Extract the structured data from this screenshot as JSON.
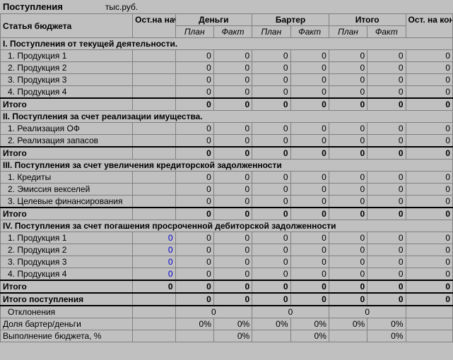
{
  "title": "Поступления",
  "unit": "тыс.руб.",
  "headers": {
    "name": "Статья бюджета",
    "start": "Ост.на начало",
    "money": "Деньги",
    "barter": "Бартер",
    "total": "Итого",
    "end": "Ост. на конец",
    "plan": "План",
    "fact": "Факт"
  },
  "sections": {
    "s1": {
      "title": "I. Поступления от текущей деятельности.",
      "rows": [
        {
          "name": "1. Продукция 1",
          "m_plan": "0",
          "m_fact": "0",
          "b_plan": "0",
          "b_fact": "0",
          "t_plan": "0",
          "t_fact": "0",
          "end": "0"
        },
        {
          "name": "2. Продукция 2",
          "m_plan": "0",
          "m_fact": "0",
          "b_plan": "0",
          "b_fact": "0",
          "t_plan": "0",
          "t_fact": "0",
          "end": "0"
        },
        {
          "name": "3. Продукция 3",
          "m_plan": "0",
          "m_fact": "0",
          "b_plan": "0",
          "b_fact": "0",
          "t_plan": "0",
          "t_fact": "0",
          "end": "0"
        },
        {
          "name": "4. Продукция 4",
          "m_plan": "0",
          "m_fact": "0",
          "b_plan": "0",
          "b_fact": "0",
          "t_plan": "0",
          "t_fact": "0",
          "end": "0"
        }
      ],
      "total": {
        "name": "Итого",
        "m_plan": "0",
        "m_fact": "0",
        "b_plan": "0",
        "b_fact": "0",
        "t_plan": "0",
        "t_fact": "0",
        "end": "0"
      }
    },
    "s2": {
      "title": "II. Поступления за счет реализации имущества.",
      "rows": [
        {
          "name": "1. Реализация ОФ",
          "m_plan": "0",
          "m_fact": "0",
          "b_plan": "0",
          "b_fact": "0",
          "t_plan": "0",
          "t_fact": "0",
          "end": "0"
        },
        {
          "name": "2. Реализация запасов",
          "m_plan": "0",
          "m_fact": "0",
          "b_plan": "0",
          "b_fact": "0",
          "t_plan": "0",
          "t_fact": "0",
          "end": "0"
        }
      ],
      "total": {
        "name": "Итого",
        "m_plan": "0",
        "m_fact": "0",
        "b_plan": "0",
        "b_fact": "0",
        "t_plan": "0",
        "t_fact": "0",
        "end": "0"
      }
    },
    "s3": {
      "title": "III. Поступления за счет увеличения кредиторской задолженности",
      "rows": [
        {
          "name": "1. Кредиты",
          "m_plan": "0",
          "m_fact": "0",
          "b_plan": "0",
          "b_fact": "0",
          "t_plan": "0",
          "t_fact": "0",
          "end": "0"
        },
        {
          "name": "2. Эмиссия векселей",
          "m_plan": "0",
          "m_fact": "0",
          "b_plan": "0",
          "b_fact": "0",
          "t_plan": "0",
          "t_fact": "0",
          "end": "0"
        },
        {
          "name": "3. Целевые финансирования",
          "m_plan": "0",
          "m_fact": "0",
          "b_plan": "0",
          "b_fact": "0",
          "t_plan": "0",
          "t_fact": "0",
          "end": "0"
        }
      ],
      "total": {
        "name": "Итого",
        "m_plan": "0",
        "m_fact": "0",
        "b_plan": "0",
        "b_fact": "0",
        "t_plan": "0",
        "t_fact": "0",
        "end": "0"
      }
    },
    "s4": {
      "title": "IV. Поступления за счет погашения просроченной дебиторской задолженности",
      "rows": [
        {
          "name": "1. Продукция 1",
          "start": "0",
          "m_plan": "0",
          "m_fact": "0",
          "b_plan": "0",
          "b_fact": "0",
          "t_plan": "0",
          "t_fact": "0",
          "end": "0"
        },
        {
          "name": "2. Продукция 2",
          "start": "0",
          "m_plan": "0",
          "m_fact": "0",
          "b_plan": "0",
          "b_fact": "0",
          "t_plan": "0",
          "t_fact": "0",
          "end": "0"
        },
        {
          "name": "3. Продукция 3",
          "start": "0",
          "m_plan": "0",
          "m_fact": "0",
          "b_plan": "0",
          "b_fact": "0",
          "t_plan": "0",
          "t_fact": "0",
          "end": "0"
        },
        {
          "name": "4. Продукция 4",
          "start": "0",
          "m_plan": "0",
          "m_fact": "0",
          "b_plan": "0",
          "b_fact": "0",
          "t_plan": "0",
          "t_fact": "0",
          "end": "0"
        }
      ],
      "total": {
        "name": "Итого",
        "start": "0",
        "m_plan": "0",
        "m_fact": "0",
        "b_plan": "0",
        "b_fact": "0",
        "t_plan": "0",
        "t_fact": "0",
        "end": "0"
      }
    }
  },
  "grand_total": {
    "name": "Итого поступления",
    "m_plan": "0",
    "m_fact": "0",
    "b_plan": "0",
    "b_fact": "0",
    "t_plan": "0",
    "t_fact": "0",
    "end": "0"
  },
  "footer": {
    "dev": {
      "name": "Отклонения",
      "money": "0",
      "barter": "0",
      "total": "0"
    },
    "ratio": {
      "name": "Доля бартер/деньги",
      "m_plan": "0%",
      "m_fact": "0%",
      "b_plan": "0%",
      "b_fact": "0%",
      "t_plan": "0%",
      "t_fact": "0%"
    },
    "exec": {
      "name": "Выполнение бюджета, %",
      "m_fact": "0%",
      "b_fact": "0%",
      "t_fact": "0%"
    }
  }
}
